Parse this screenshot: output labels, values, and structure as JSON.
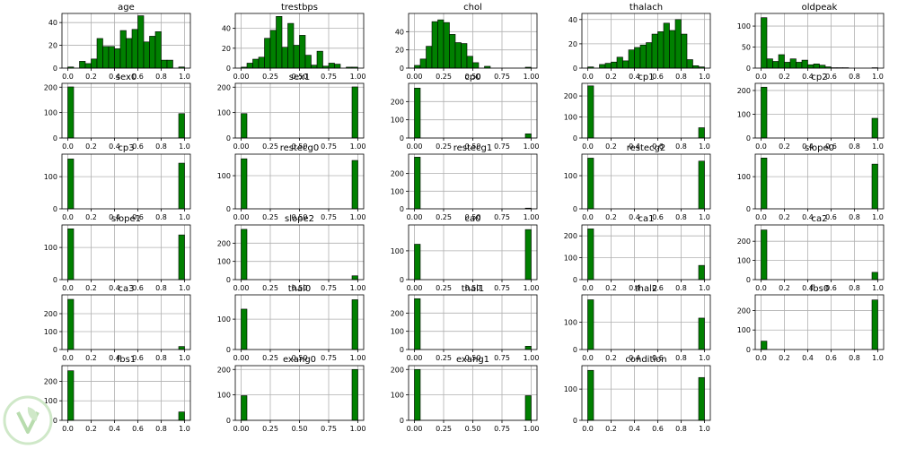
{
  "chart_data": [
    {
      "type": "bar",
      "title": "age",
      "xlim": [
        -0.05,
        1.05
      ],
      "ylim": [
        0,
        48
      ],
      "x_ticks": [
        "0.0",
        "0.2",
        "0.4",
        "0.6",
        "0.8",
        "1.0"
      ],
      "y_ticks": [
        0,
        20,
        40
      ],
      "bins": [
        [
          0.0,
          1
        ],
        [
          0.05,
          0
        ],
        [
          0.1,
          6
        ],
        [
          0.15,
          4
        ],
        [
          0.2,
          8
        ],
        [
          0.25,
          26
        ],
        [
          0.3,
          19
        ],
        [
          0.35,
          19
        ],
        [
          0.4,
          17
        ],
        [
          0.45,
          33
        ],
        [
          0.5,
          26
        ],
        [
          0.55,
          34
        ],
        [
          0.6,
          46
        ],
        [
          0.65,
          23
        ],
        [
          0.7,
          28
        ],
        [
          0.75,
          32
        ],
        [
          0.8,
          7
        ],
        [
          0.85,
          7
        ],
        [
          0.9,
          0
        ],
        [
          0.95,
          1
        ]
      ]
    },
    {
      "type": "bar",
      "title": "trestbps",
      "xlim": [
        -0.05,
        1.05
      ],
      "ylim": [
        0,
        55
      ],
      "x_ticks": [
        "0.00",
        "0.25",
        "0.50",
        "0.75",
        "1.00"
      ],
      "y_ticks": [
        0,
        20,
        40
      ],
      "bins": [
        [
          0.0,
          1
        ],
        [
          0.05,
          5
        ],
        [
          0.1,
          9
        ],
        [
          0.15,
          11
        ],
        [
          0.2,
          30
        ],
        [
          0.25,
          38
        ],
        [
          0.3,
          52
        ],
        [
          0.35,
          21
        ],
        [
          0.4,
          45
        ],
        [
          0.45,
          23
        ],
        [
          0.5,
          33
        ],
        [
          0.55,
          13
        ],
        [
          0.6,
          3
        ],
        [
          0.65,
          17
        ],
        [
          0.7,
          2
        ],
        [
          0.75,
          5
        ],
        [
          0.8,
          4
        ],
        [
          0.85,
          0
        ],
        [
          0.9,
          1
        ],
        [
          0.95,
          1
        ]
      ]
    },
    {
      "type": "bar",
      "title": "chol",
      "xlim": [
        -0.05,
        1.05
      ],
      "ylim": [
        0,
        60
      ],
      "x_ticks": [
        "0.00",
        "0.25",
        "0.50",
        "0.75",
        "1.00"
      ],
      "y_ticks": [
        0,
        20,
        40
      ],
      "bins": [
        [
          0.0,
          3
        ],
        [
          0.05,
          10
        ],
        [
          0.1,
          24
        ],
        [
          0.15,
          51
        ],
        [
          0.2,
          53
        ],
        [
          0.25,
          50
        ],
        [
          0.3,
          37
        ],
        [
          0.35,
          28
        ],
        [
          0.4,
          27
        ],
        [
          0.45,
          13
        ],
        [
          0.5,
          6
        ],
        [
          0.55,
          0
        ],
        [
          0.6,
          2
        ],
        [
          0.65,
          0
        ],
        [
          0.7,
          0
        ],
        [
          0.75,
          0
        ],
        [
          0.8,
          0
        ],
        [
          0.85,
          0
        ],
        [
          0.9,
          0
        ],
        [
          0.95,
          1
        ]
      ]
    },
    {
      "type": "bar",
      "title": "thalach",
      "xlim": [
        -0.05,
        1.05
      ],
      "ylim": [
        0,
        45
      ],
      "x_ticks": [
        "0.0",
        "0.2",
        "0.4",
        "0.6",
        "0.8",
        "1.0"
      ],
      "y_ticks": [
        0,
        20,
        40
      ],
      "bins": [
        [
          0.0,
          1
        ],
        [
          0.05,
          0
        ],
        [
          0.1,
          3
        ],
        [
          0.15,
          4
        ],
        [
          0.2,
          5
        ],
        [
          0.25,
          9
        ],
        [
          0.3,
          6
        ],
        [
          0.35,
          15
        ],
        [
          0.4,
          17
        ],
        [
          0.45,
          19
        ],
        [
          0.5,
          21
        ],
        [
          0.55,
          28
        ],
        [
          0.6,
          30
        ],
        [
          0.65,
          37
        ],
        [
          0.7,
          31
        ],
        [
          0.75,
          40
        ],
        [
          0.8,
          28
        ],
        [
          0.85,
          7
        ],
        [
          0.9,
          2
        ],
        [
          0.95,
          1
        ]
      ]
    },
    {
      "type": "bar",
      "title": "oldpeak",
      "xlim": [
        -0.05,
        1.05
      ],
      "ylim": [
        0,
        130
      ],
      "x_ticks": [
        "0.0",
        "0.2",
        "0.4",
        "0.6",
        "0.8",
        "1.0"
      ],
      "y_ticks": [
        0,
        50,
        100
      ],
      "bins": [
        [
          0.0,
          120
        ],
        [
          0.05,
          22
        ],
        [
          0.1,
          16
        ],
        [
          0.15,
          32
        ],
        [
          0.2,
          14
        ],
        [
          0.25,
          22
        ],
        [
          0.3,
          14
        ],
        [
          0.35,
          19
        ],
        [
          0.4,
          8
        ],
        [
          0.45,
          10
        ],
        [
          0.5,
          7
        ],
        [
          0.55,
          3
        ],
        [
          0.6,
          1
        ],
        [
          0.65,
          1
        ],
        [
          0.7,
          1
        ],
        [
          0.75,
          0
        ],
        [
          0.8,
          0
        ],
        [
          0.85,
          0
        ],
        [
          0.9,
          0
        ],
        [
          0.95,
          1
        ]
      ]
    },
    {
      "type": "bar",
      "title": "sex0",
      "xlim": [
        -0.05,
        1.05
      ],
      "ylim": [
        0,
        215
      ],
      "x_ticks": [
        "0.0",
        "0.2",
        "0.4",
        "0.6",
        "0.8",
        "1.0"
      ],
      "y_ticks": [
        0,
        100,
        200
      ],
      "bins": [
        [
          0.0,
          201
        ],
        [
          0.95,
          96
        ]
      ]
    },
    {
      "type": "bar",
      "title": "sex1",
      "xlim": [
        -0.05,
        1.05
      ],
      "ylim": [
        0,
        215
      ],
      "x_ticks": [
        "0.00",
        "0.25",
        "0.50",
        "0.75",
        "1.00"
      ],
      "y_ticks": [
        0,
        100,
        200
      ],
      "bins": [
        [
          0.0,
          96
        ],
        [
          0.95,
          201
        ]
      ]
    },
    {
      "type": "bar",
      "title": "cp0",
      "xlim": [
        -0.05,
        1.05
      ],
      "ylim": [
        0,
        300
      ],
      "x_ticks": [
        "0.00",
        "0.25",
        "0.50",
        "0.75",
        "1.00"
      ],
      "y_ticks": [
        0,
        100,
        200
      ],
      "bins": [
        [
          0.0,
          274
        ],
        [
          0.95,
          23
        ]
      ]
    },
    {
      "type": "bar",
      "title": "cp1",
      "xlim": [
        -0.05,
        1.05
      ],
      "ylim": [
        0,
        260
      ],
      "x_ticks": [
        "0.0",
        "0.2",
        "0.4",
        "0.6",
        "0.8",
        "1.0"
      ],
      "y_ticks": [
        0,
        100,
        200
      ],
      "bins": [
        [
          0.0,
          248
        ],
        [
          0.95,
          49
        ]
      ]
    },
    {
      "type": "bar",
      "title": "cp2",
      "xlim": [
        -0.05,
        1.05
      ],
      "ylim": [
        0,
        230
      ],
      "x_ticks": [
        "0.0",
        "0.2",
        "0.4",
        "0.6",
        "0.8",
        "1.0"
      ],
      "y_ticks": [
        0,
        100,
        200
      ],
      "bins": [
        [
          0.0,
          214
        ],
        [
          0.95,
          83
        ]
      ]
    },
    {
      "type": "bar",
      "title": "cp3",
      "xlim": [
        -0.05,
        1.05
      ],
      "ylim": [
        0,
        170
      ],
      "x_ticks": [
        "0.0",
        "0.2",
        "0.4",
        "0.6",
        "0.8",
        "1.0"
      ],
      "y_ticks": [
        0,
        100
      ],
      "bins": [
        [
          0.0,
          155
        ],
        [
          0.95,
          142
        ]
      ]
    },
    {
      "type": "bar",
      "title": "restecg0",
      "xlim": [
        -0.05,
        1.05
      ],
      "ylim": [
        0,
        165
      ],
      "x_ticks": [
        "0.00",
        "0.25",
        "0.50",
        "0.75",
        "1.00"
      ],
      "y_ticks": [
        0,
        100
      ],
      "bins": [
        [
          0.0,
          151
        ],
        [
          0.95,
          146
        ]
      ]
    },
    {
      "type": "bar",
      "title": "restecg1",
      "xlim": [
        -0.05,
        1.05
      ],
      "ylim": [
        0,
        310
      ],
      "x_ticks": [
        "0.00",
        "0.25",
        "0.50",
        "0.75",
        "1.00"
      ],
      "y_ticks": [
        0,
        100,
        200
      ],
      "bins": [
        [
          0.0,
          293
        ],
        [
          0.95,
          4
        ]
      ]
    },
    {
      "type": "bar",
      "title": "restecg2",
      "xlim": [
        -0.05,
        1.05
      ],
      "ylim": [
        0,
        165
      ],
      "x_ticks": [
        "0.0",
        "0.2",
        "0.4",
        "0.6",
        "0.8",
        "1.0"
      ],
      "y_ticks": [
        0,
        100
      ],
      "bins": [
        [
          0.0,
          153
        ],
        [
          0.95,
          144
        ]
      ]
    },
    {
      "type": "bar",
      "title": "slope0",
      "xlim": [
        -0.05,
        1.05
      ],
      "ylim": [
        0,
        170
      ],
      "x_ticks": [
        "0.0",
        "0.2",
        "0.4",
        "0.6",
        "0.8",
        "1.0"
      ],
      "y_ticks": [
        0,
        100
      ],
      "bins": [
        [
          0.0,
          158
        ],
        [
          0.95,
          139
        ]
      ]
    },
    {
      "type": "bar",
      "title": "slope1",
      "xlim": [
        -0.05,
        1.05
      ],
      "ylim": [
        0,
        170
      ],
      "x_ticks": [
        "0.0",
        "0.2",
        "0.4",
        "0.6",
        "0.8",
        "1.0"
      ],
      "y_ticks": [
        0,
        100
      ],
      "bins": [
        [
          0.0,
          158
        ],
        [
          0.95,
          139
        ]
      ]
    },
    {
      "type": "bar",
      "title": "slope2",
      "xlim": [
        -0.05,
        1.05
      ],
      "ylim": [
        0,
        300
      ],
      "x_ticks": [
        "0.00",
        "0.25",
        "0.50",
        "0.75",
        "1.00"
      ],
      "y_ticks": [
        0,
        100,
        200
      ],
      "bins": [
        [
          0.0,
          276
        ],
        [
          0.95,
          21
        ]
      ]
    },
    {
      "type": "bar",
      "title": "ca0",
      "xlim": [
        -0.05,
        1.05
      ],
      "ylim": [
        0,
        190
      ],
      "x_ticks": [
        "0.00",
        "0.25",
        "0.50",
        "0.75",
        "1.00"
      ],
      "y_ticks": [
        0,
        100
      ],
      "bins": [
        [
          0.0,
          123
        ],
        [
          0.95,
          174
        ]
      ]
    },
    {
      "type": "bar",
      "title": "ca1",
      "xlim": [
        -0.05,
        1.05
      ],
      "ylim": [
        0,
        250
      ],
      "x_ticks": [
        "0.0",
        "0.2",
        "0.4",
        "0.6",
        "0.8",
        "1.0"
      ],
      "y_ticks": [
        0,
        100,
        200
      ],
      "bins": [
        [
          0.0,
          232
        ],
        [
          0.95,
          65
        ]
      ]
    },
    {
      "type": "bar",
      "title": "ca2",
      "xlim": [
        -0.05,
        1.05
      ],
      "ylim": [
        0,
        285
      ],
      "x_ticks": [
        "0.0",
        "0.2",
        "0.4",
        "0.6",
        "0.8",
        "1.0"
      ],
      "y_ticks": [
        0,
        100,
        200
      ],
      "bins": [
        [
          0.0,
          259
        ],
        [
          0.95,
          38
        ]
      ]
    },
    {
      "type": "bar",
      "title": "ca3",
      "xlim": [
        -0.05,
        1.05
      ],
      "ylim": [
        0,
        305
      ],
      "x_ticks": [
        "0.0",
        "0.2",
        "0.4",
        "0.6",
        "0.8",
        "1.0"
      ],
      "y_ticks": [
        0,
        100,
        200
      ],
      "bins": [
        [
          0.0,
          280
        ],
        [
          0.95,
          17
        ]
      ]
    },
    {
      "type": "bar",
      "title": "thal0",
      "xlim": [
        -0.05,
        1.05
      ],
      "ylim": [
        0,
        180
      ],
      "x_ticks": [
        "0.00",
        "0.25",
        "0.50",
        "0.75",
        "1.00"
      ],
      "y_ticks": [
        0,
        100
      ],
      "bins": [
        [
          0.0,
          133
        ],
        [
          0.95,
          164
        ]
      ]
    },
    {
      "type": "bar",
      "title": "thal1",
      "xlim": [
        -0.05,
        1.05
      ],
      "ylim": [
        0,
        300
      ],
      "x_ticks": [
        "0.00",
        "0.25",
        "0.50",
        "0.75",
        "1.00"
      ],
      "y_ticks": [
        0,
        100,
        200
      ],
      "bins": [
        [
          0.0,
          279
        ],
        [
          0.95,
          18
        ]
      ]
    },
    {
      "type": "bar",
      "title": "thal2",
      "xlim": [
        -0.05,
        1.05
      ],
      "ylim": [
        0,
        200
      ],
      "x_ticks": [
        "0.0",
        "0.2",
        "0.4",
        "0.6",
        "0.8",
        "1.0"
      ],
      "y_ticks": [
        0,
        100
      ],
      "bins": [
        [
          0.0,
          182
        ],
        [
          0.95,
          115
        ]
      ]
    },
    {
      "type": "bar",
      "title": "fbs0",
      "xlim": [
        -0.05,
        1.05
      ],
      "ylim": [
        0,
        280
      ],
      "x_ticks": [
        "0.0",
        "0.2",
        "0.4",
        "0.6",
        "0.8",
        "1.0"
      ],
      "y_ticks": [
        0,
        100,
        200
      ],
      "bins": [
        [
          0.0,
          43
        ],
        [
          0.95,
          254
        ]
      ]
    },
    {
      "type": "bar",
      "title": "fbs1",
      "xlim": [
        -0.05,
        1.05
      ],
      "ylim": [
        0,
        280
      ],
      "x_ticks": [
        "0.0",
        "0.2",
        "0.4",
        "0.6",
        "0.8",
        "1.0"
      ],
      "y_ticks": [
        0,
        100,
        200
      ],
      "bins": [
        [
          0.0,
          254
        ],
        [
          0.95,
          43
        ]
      ]
    },
    {
      "type": "bar",
      "title": "exang0",
      "xlim": [
        -0.05,
        1.05
      ],
      "ylim": [
        0,
        215
      ],
      "x_ticks": [
        "0.00",
        "0.25",
        "0.50",
        "0.75",
        "1.00"
      ],
      "y_ticks": [
        0,
        100,
        200
      ],
      "bins": [
        [
          0.0,
          97
        ],
        [
          0.95,
          200
        ]
      ]
    },
    {
      "type": "bar",
      "title": "exang1",
      "xlim": [
        -0.05,
        1.05
      ],
      "ylim": [
        0,
        215
      ],
      "x_ticks": [
        "0.00",
        "0.25",
        "0.50",
        "0.75",
        "1.00"
      ],
      "y_ticks": [
        0,
        100,
        200
      ],
      "bins": [
        [
          0.0,
          200
        ],
        [
          0.95,
          97
        ]
      ]
    },
    {
      "type": "bar",
      "title": "condition",
      "xlim": [
        -0.05,
        1.05
      ],
      "ylim": [
        0,
        175
      ],
      "x_ticks": [
        "0.0",
        "0.2",
        "0.4",
        "0.6",
        "0.8",
        "1.0"
      ],
      "y_ticks": [
        0,
        100
      ],
      "bins": [
        [
          0.0,
          160
        ],
        [
          0.95,
          137
        ]
      ]
    }
  ],
  "style": {
    "bar_fill": "#008000",
    "bar_edge": "#000000",
    "grid_color": "#b0b0b0",
    "axis_color": "#000000",
    "watermark_color": "#a8d5a0"
  }
}
